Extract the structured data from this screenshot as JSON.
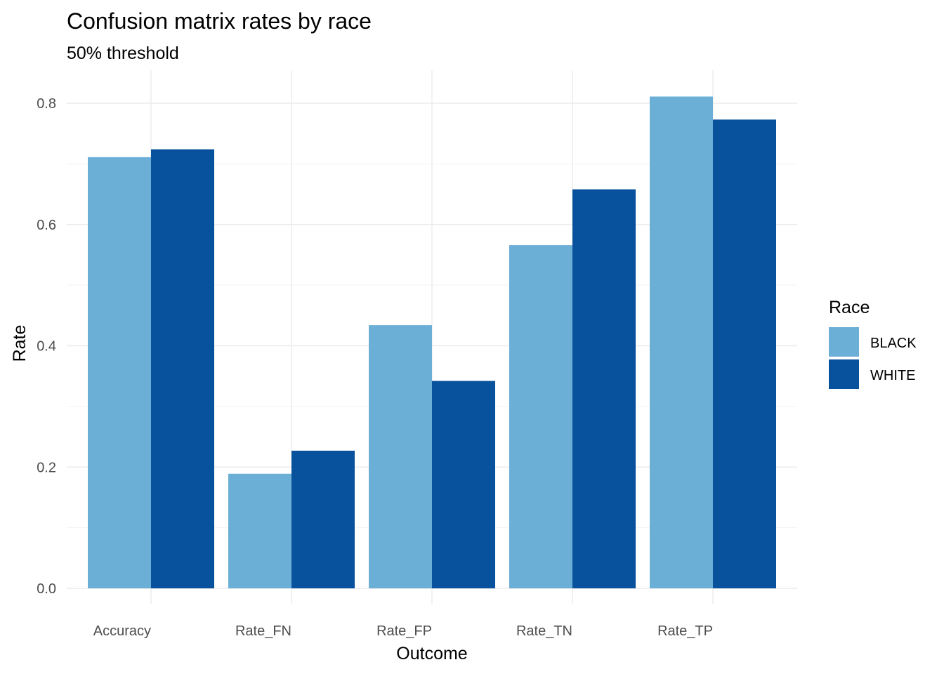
{
  "chart_data": {
    "type": "bar",
    "title": "Confusion matrix rates by race",
    "subtitle": "50% threshold",
    "xlabel": "Outcome",
    "ylabel": "Rate",
    "categories": [
      "Accuracy",
      "Rate_FN",
      "Rate_FP",
      "Rate_TN",
      "Rate_TP"
    ],
    "series": [
      {
        "name": "BLACK",
        "color": "#6baed6",
        "values": [
          0.711,
          0.189,
          0.434,
          0.566,
          0.811
        ]
      },
      {
        "name": "WHITE",
        "color": "#08519c",
        "values": [
          0.724,
          0.227,
          0.342,
          0.658,
          0.773
        ]
      }
    ],
    "ylim": [
      0,
      0.8
    ],
    "yticks": [
      0.0,
      0.2,
      0.4,
      0.6,
      0.8
    ],
    "ytick_labels": [
      "0.0",
      "0.2",
      "0.4",
      "0.6",
      "0.8"
    ],
    "grid": true,
    "legend": {
      "title": "Race",
      "position": "right"
    }
  }
}
